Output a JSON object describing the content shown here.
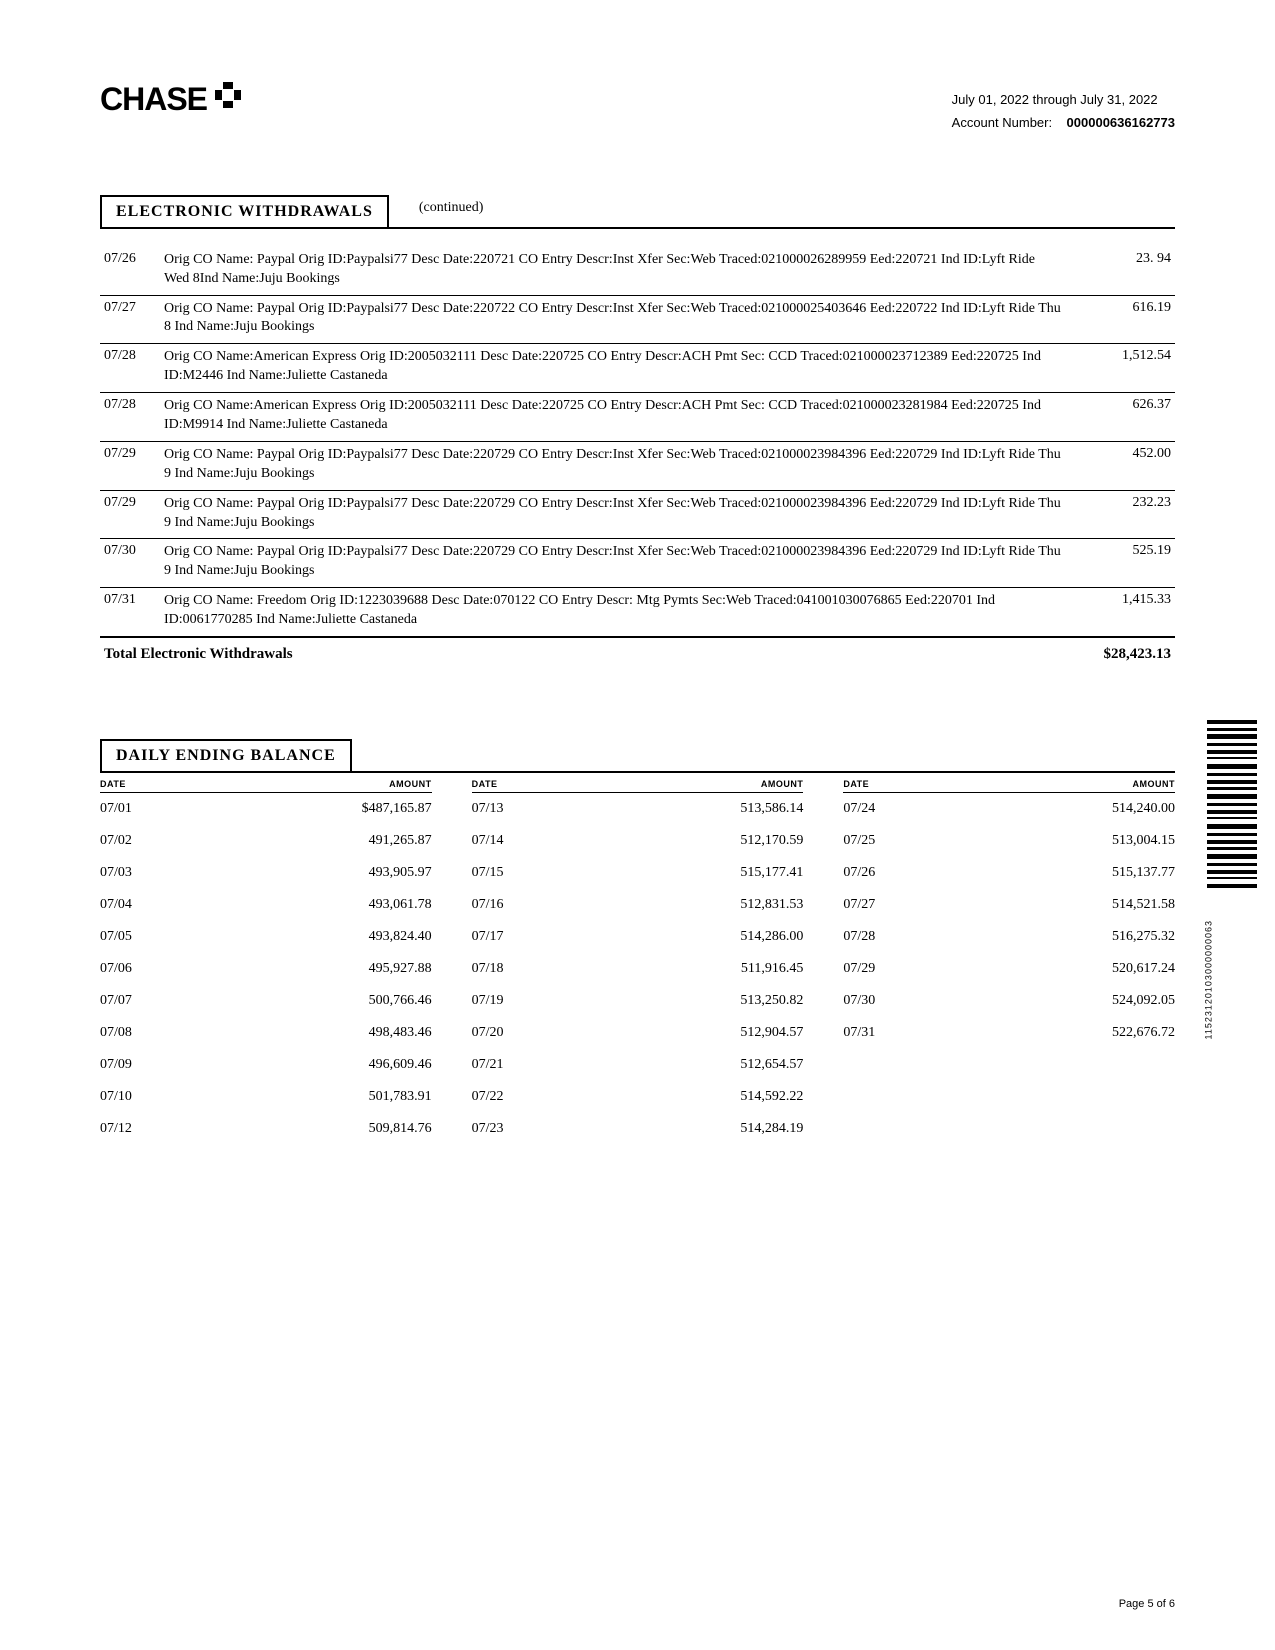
{
  "header": {
    "brand": "CHASE",
    "period": "July 01, 2022 through July 31, 2022",
    "account_label": "Account Number:",
    "account_number": "000000636162773"
  },
  "withdrawals": {
    "title": "ELECTRONIC WITHDRAWALS",
    "continued": "(continued)",
    "rows": [
      {
        "date": "07/26",
        "desc": "Orig CO Name: Paypal        Orig ID:Paypalsi77 Desc Date:220721 CO Entry Descr:Inst Xfer Sec:Web Traced:021000026289959 Eed:220721 Ind ID:Lyft Ride Wed 8Ind Name:Juju Bookings",
        "amount": "23. 94"
      },
      {
        "date": "07/27",
        "desc": "Orig CO Name: Paypal   Orig ID:Paypalsi77 Desc Date:220722 CO Entry Descr:Inst Xfer Sec:Web  Traced:021000025403646 Eed:220722 Ind ID:Lyft Ride Thu 8       Ind Name:Juju Bookings",
        "amount": "616.19"
      },
      {
        "date": "07/28",
        "desc": "Orig CO Name:American Express Orig ID:2005032111 Desc Date:220725 CO Entry Descr:ACH Pmt Sec: CCD Traced:021000023712389 Eed:220725 Ind ID:M2446            Ind Name:Juliette Castaneda",
        "amount": "1,512.54"
      },
      {
        "date": "07/28",
        "desc": "Orig CO Name:American Express Orig ID:2005032111 Desc Date:220725 CO Entry Descr:ACH Pmt   Sec: CCD       Traced:021000023281984 Eed:220725 Ind ID:M9914    Ind Name:Juliette Castaneda",
        "amount": "626.37"
      },
      {
        "date": "07/29",
        "desc": "Orig CO Name: Paypal   Orig ID:Paypalsi77 Desc Date:220729 CO Entry Descr:Inst Xfer Sec:Web  Traced:021000023984396 Eed:220729  Ind ID:Lyft Ride Thu 9      Ind Name:Juju Bookings",
        "amount": "452.00"
      },
      {
        "date": "07/29",
        "desc": "Orig CO Name: Paypal   Orig ID:Paypalsi77 Desc Date:220729 CO Entry Descr:Inst Xfer Sec:Web  Traced:021000023984396 Eed:220729  Ind ID:Lyft Ride Thu 9      Ind Name:Juju Bookings",
        "amount": "232.23"
      },
      {
        "date": "07/30",
        "desc": "Orig CO Name: Paypal   Orig ID:Paypalsi77 Desc Date:220729 CO Entry Descr:Inst Xfer Sec:Web  Traced:021000023984396 Eed:220729  Ind ID:Lyft Ride Thu 9      Ind Name:Juju Bookings",
        "amount": "525.19"
      },
      {
        "date": "07/31",
        "desc": "Orig CO Name: Freedom         Orig ID:1223039688 Desc Date:070122 CO Entry Descr: Mtg Pymts Sec:Web        Traced:041001030076865 Eed:220701 Ind ID:0061770285 Ind Name:Juliette Castaneda",
        "amount": "1,415.33"
      }
    ],
    "total_label": "Total Electronic Withdrawals",
    "total_amount": "$28,423.13"
  },
  "balance": {
    "title": "DAILY ENDING BALANCE",
    "head_date": "DATE",
    "head_amount": "AMOUNT",
    "cols": [
      [
        {
          "date": "07/01",
          "amount": "$487,165.87"
        },
        {
          "date": "07/02",
          "amount": "491,265.87"
        },
        {
          "date": "07/03",
          "amount": "493,905.97"
        },
        {
          "date": "07/04",
          "amount": "493,061.78"
        },
        {
          "date": "07/05",
          "amount": "493,824.40"
        },
        {
          "date": "07/06",
          "amount": "495,927.88"
        },
        {
          "date": "07/07",
          "amount": "500,766.46"
        },
        {
          "date": "07/08",
          "amount": "498,483.46"
        },
        {
          "date": "07/09",
          "amount": "496,609.46"
        },
        {
          "date": "07/10",
          "amount": "501,783.91"
        },
        {
          "date": "07/12",
          "amount": "509,814.76"
        }
      ],
      [
        {
          "date": "07/13",
          "amount": "513,586.14"
        },
        {
          "date": "07/14",
          "amount": "512,170.59"
        },
        {
          "date": "07/15",
          "amount": "515,177.41"
        },
        {
          "date": "07/16",
          "amount": "512,831.53"
        },
        {
          "date": "07/17",
          "amount": "514,286.00"
        },
        {
          "date": "07/18",
          "amount": "511,916.45"
        },
        {
          "date": "07/19",
          "amount": "513,250.82"
        },
        {
          "date": "07/20",
          "amount": "512,904.57"
        },
        {
          "date": "07/21",
          "amount": "512,654.57"
        },
        {
          "date": "07/22",
          "amount": "514,592.22"
        },
        {
          "date": "07/23",
          "amount": "514,284.19"
        }
      ],
      [
        {
          "date": "07/24",
          "amount": "514,240.00"
        },
        {
          "date": "07/25",
          "amount": "513,004.15"
        },
        {
          "date": "07/26",
          "amount": "515,137.77"
        },
        {
          "date": "07/27",
          "amount": "514,521.58"
        },
        {
          "date": "07/28",
          "amount": "516,275.32"
        },
        {
          "date": "07/29",
          "amount": "520,617.24"
        },
        {
          "date": "07/30",
          "amount": "524,092.05"
        },
        {
          "date": "07/31",
          "amount": "522,676.72"
        }
      ]
    ]
  },
  "barcode_number": "11523120103000000063",
  "footer": {
    "page": "Page 5 of 6"
  }
}
